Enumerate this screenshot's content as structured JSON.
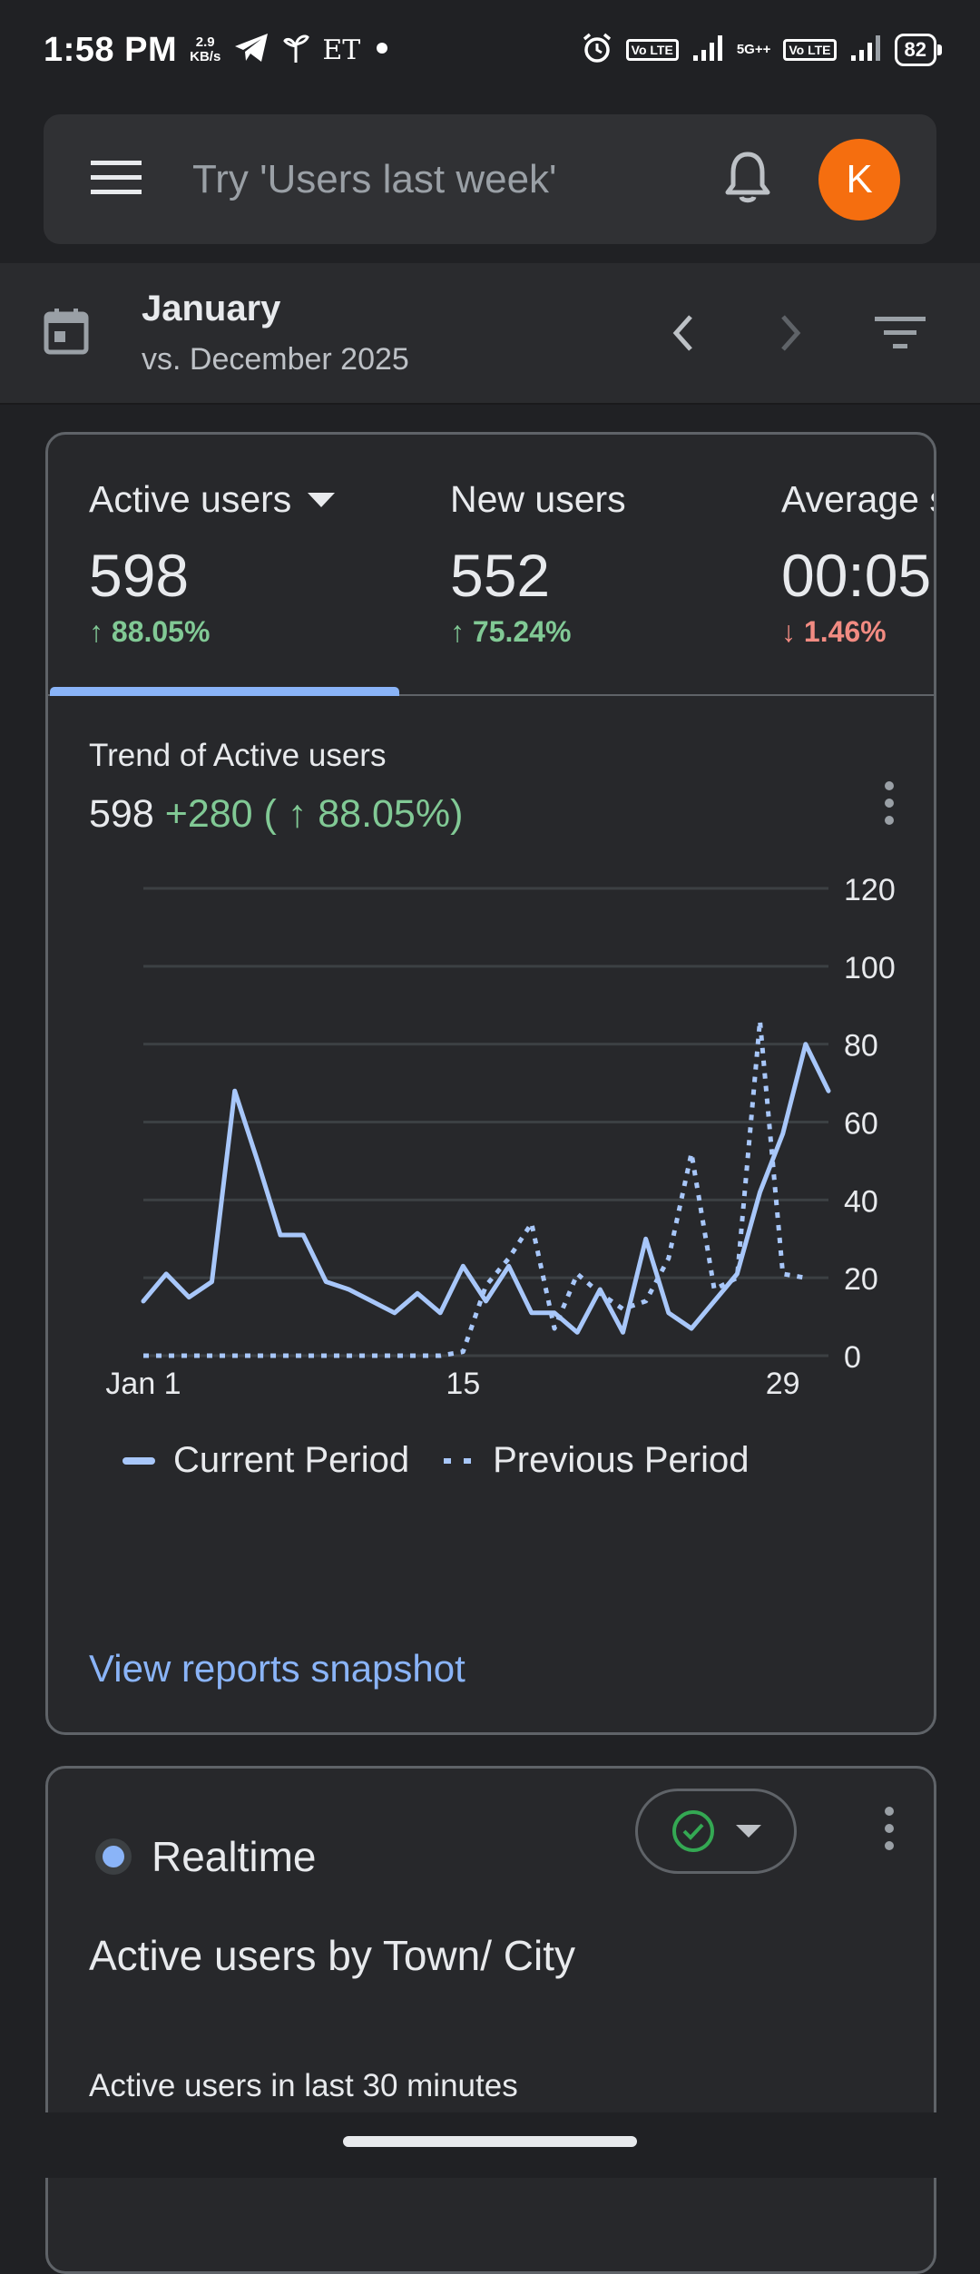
{
  "status_bar": {
    "time": "1:58 PM",
    "speed_value": "2.9",
    "speed_unit": "KB/s",
    "app_text": "ET",
    "volte1": "Vo LTE",
    "network": "5G++",
    "volte2": "Vo LTE",
    "battery": "82"
  },
  "search": {
    "placeholder": "Try 'Users last week'",
    "avatar_letter": "K"
  },
  "date_range": {
    "title": "January",
    "comparison": "vs. December 2025"
  },
  "metrics": [
    {
      "label": "Active users",
      "value": "598",
      "change": "88.05%",
      "direction": "up"
    },
    {
      "label": "New users",
      "value": "552",
      "change": "75.24%",
      "direction": "up"
    },
    {
      "label": "Average s",
      "value": "00:05",
      "change": "1.46%",
      "direction": "down"
    }
  ],
  "trend": {
    "title": "Trend of Active users",
    "value": "598",
    "delta": "+280 (",
    "delta_pct": "88.05%)"
  },
  "chart_data": {
    "type": "line",
    "x": [
      1,
      2,
      3,
      4,
      5,
      6,
      7,
      8,
      9,
      10,
      11,
      12,
      13,
      14,
      15,
      16,
      17,
      18,
      19,
      20,
      21,
      22,
      23,
      24,
      25,
      26,
      27,
      28,
      29,
      30,
      31
    ],
    "series": [
      {
        "name": "Current Period",
        "style": "solid",
        "color": "#a8c7fa",
        "values": [
          14,
          21,
          15,
          19,
          68,
          50,
          31,
          31,
          19,
          17,
          14,
          11,
          16,
          11,
          23,
          14,
          23,
          11,
          11,
          6,
          17,
          6,
          30,
          11,
          7,
          14,
          21,
          42,
          57,
          80,
          68
        ]
      },
      {
        "name": "Previous Period",
        "style": "dotted",
        "color": "#a8c7fa",
        "values": [
          0,
          0,
          0,
          0,
          0,
          0,
          0,
          0,
          0,
          0,
          0,
          0,
          0,
          0,
          1,
          18,
          25,
          34,
          7,
          21,
          16,
          12,
          14,
          25,
          52,
          17,
          20,
          86,
          21,
          20,
          null
        ]
      }
    ],
    "x_ticks": [
      {
        "x": 1,
        "label": "Jan 1"
      },
      {
        "x": 15,
        "label": "15"
      },
      {
        "x": 29,
        "label": "29"
      }
    ],
    "y_ticks": [
      0,
      20,
      40,
      60,
      80,
      100,
      120
    ],
    "ylim": [
      0,
      120
    ],
    "grid": true,
    "y_axis_position": "right",
    "legend_position": "bottom"
  },
  "links": {
    "view_reports": "View reports snapshot"
  },
  "realtime": {
    "label": "Realtime",
    "title": "Active users by Town/ City",
    "subtitle": "Active users in last 30 minutes"
  }
}
